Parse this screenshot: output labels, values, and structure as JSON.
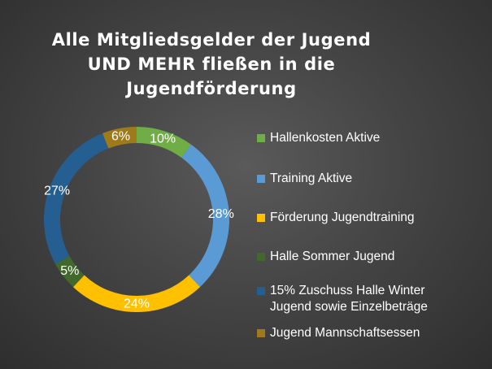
{
  "chart_data": {
    "type": "pie",
    "variant": "donut",
    "title_lines": [
      "Alle Mitgliedsgelder der Jugend",
      "UND MEHR fließen in die",
      "Jugendförderung"
    ],
    "segments": [
      {
        "label_lines": [
          "Hallenkosten Aktive"
        ],
        "value": 10,
        "value_label": "10%",
        "color": "#70ad47"
      },
      {
        "label_lines": [
          "Training Aktive"
        ],
        "value": 28,
        "value_label": "28%",
        "color": "#5b9bd5"
      },
      {
        "label_lines": [
          "Förderung Jugendtraining"
        ],
        "value": 24,
        "value_label": "24%",
        "color": "#ffc000"
      },
      {
        "label_lines": [
          "Halle Sommer Jugend"
        ],
        "value": 5,
        "value_label": "5%",
        "color": "#43682b"
      },
      {
        "label_lines": [
          "15% Zuschuss Halle Winter",
          "Jugend sowie Einzelbeträge"
        ],
        "value": 27,
        "value_label": "27%",
        "color": "#255e91"
      },
      {
        "label_lines": [
          "Jugend Mannschaftsessen"
        ],
        "value": 6,
        "value_label": "6%",
        "color": "#9e7a1b"
      }
    ],
    "legend_position": "right",
    "background": "#404040"
  }
}
